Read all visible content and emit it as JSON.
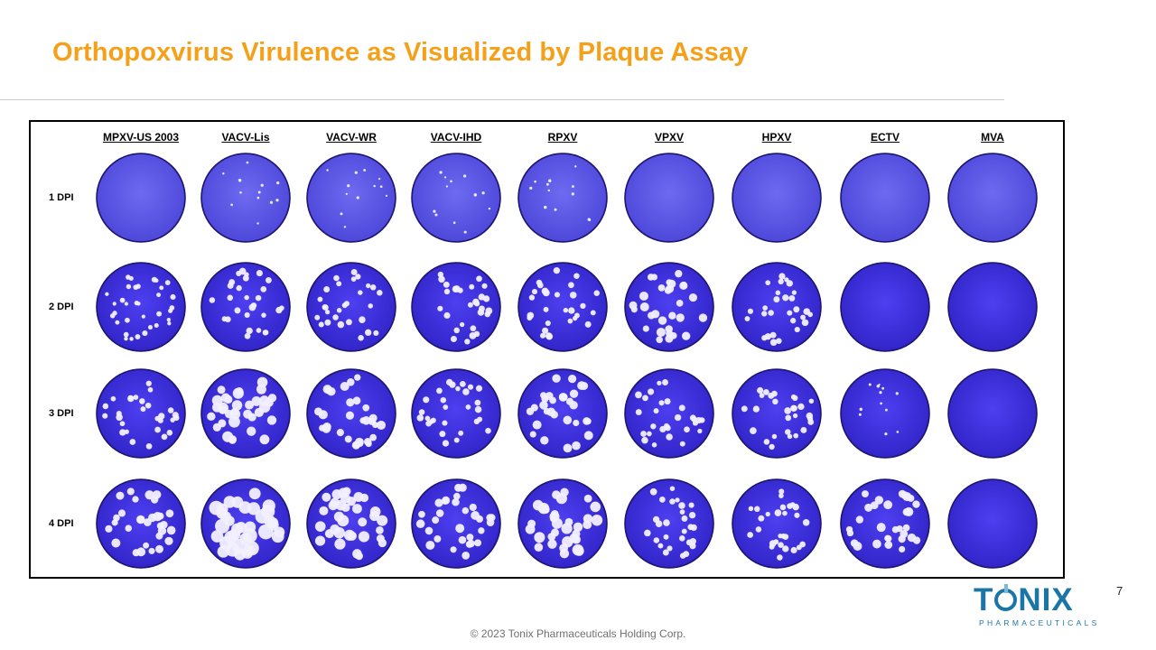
{
  "slide": {
    "title": "Orthopoxvirus Virulence as Visualized by Plaque Assay",
    "page_number": "7",
    "footer": "© 2023 Tonix Pharmaceuticals Holding Corp.",
    "accent_color": "#f5a01a"
  },
  "logo": {
    "word_before": "T",
    "word_after": "NIX",
    "tagline": "PHARMACEUTICALS",
    "color": "#1b76a6"
  },
  "figure": {
    "columns": [
      "MPXV-US 2003",
      "VACV-Lis",
      "VACV-WR",
      "VACV-IHD",
      "RPXV",
      "VPXV",
      "HPXV",
      "ECTV",
      "MVA"
    ],
    "rows": [
      "1 DPI",
      "2 DPI",
      "3 DPI",
      "4 DPI"
    ],
    "plate_base_color": "#5a4ee8",
    "plaque_color": "#f2f0ff",
    "plaque_levels": [
      [
        0,
        1,
        1,
        1,
        1,
        0,
        0,
        0,
        0
      ],
      [
        2,
        3,
        3,
        3,
        3,
        4,
        3,
        0,
        0
      ],
      [
        3,
        5,
        4,
        3,
        4,
        3,
        3,
        1,
        0
      ],
      [
        4,
        6,
        5,
        4,
        5,
        3,
        3,
        4,
        0
      ]
    ]
  }
}
